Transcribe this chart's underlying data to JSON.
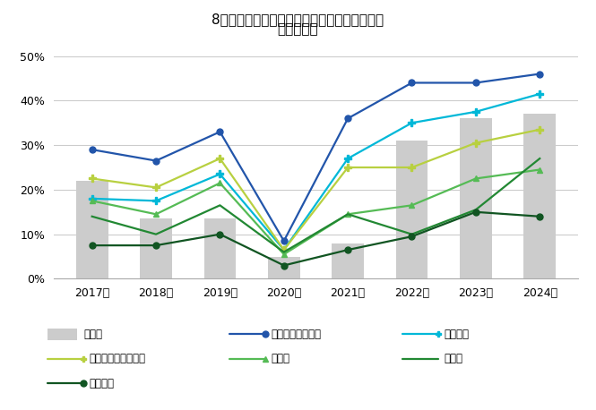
{
  "title_line1": "8月時点で改定後最低賃金を下回る求人の割合",
  "title_line2": "（職種別）",
  "years": [
    2017,
    2018,
    2019,
    2020,
    2021,
    2022,
    2023,
    2024
  ],
  "bar_values": [
    0.22,
    0.135,
    0.135,
    0.05,
    0.08,
    0.31,
    0.36,
    0.37
  ],
  "series_order": [
    "販売・サービス系",
    "フード系",
    "製造・物流・清掃系",
    "事務系",
    "営業系",
    "専門職系"
  ],
  "series": {
    "販売・サービス系": {
      "values": [
        0.29,
        0.265,
        0.33,
        0.085,
        0.36,
        0.44,
        0.44,
        0.46
      ],
      "color": "#2255aa",
      "marker": "o",
      "markersize": 5
    },
    "フード系": {
      "values": [
        0.18,
        0.175,
        0.235,
        0.065,
        0.27,
        0.35,
        0.375,
        0.415
      ],
      "color": "#00b8d8",
      "marker": "P",
      "markersize": 6
    },
    "製造・物流・清掃系": {
      "values": [
        0.225,
        0.205,
        0.27,
        0.065,
        0.25,
        0.25,
        0.305,
        0.335
      ],
      "color": "#b8d040",
      "marker": "P",
      "markersize": 6
    },
    "事務系": {
      "values": [
        0.175,
        0.145,
        0.215,
        0.055,
        0.145,
        0.165,
        0.225,
        0.245
      ],
      "color": "#55bb55",
      "marker": "^",
      "markersize": 5
    },
    "営業系": {
      "values": [
        0.14,
        0.1,
        0.165,
        0.06,
        0.145,
        0.1,
        0.155,
        0.27
      ],
      "color": "#228833",
      "marker": "None",
      "markersize": 0
    },
    "専門職系": {
      "values": [
        0.075,
        0.075,
        0.1,
        0.03,
        0.065,
        0.095,
        0.15,
        0.14
      ],
      "color": "#115522",
      "marker": "o",
      "markersize": 5
    }
  },
  "bar_color": "#cccccc",
  "ylim": [
    0,
    0.52
  ],
  "yticks": [
    0,
    0.1,
    0.2,
    0.3,
    0.4,
    0.5
  ],
  "ytick_labels": [
    "0%",
    "10%",
    "20%",
    "30%",
    "40%",
    "50%"
  ],
  "background_color": "#ffffff"
}
